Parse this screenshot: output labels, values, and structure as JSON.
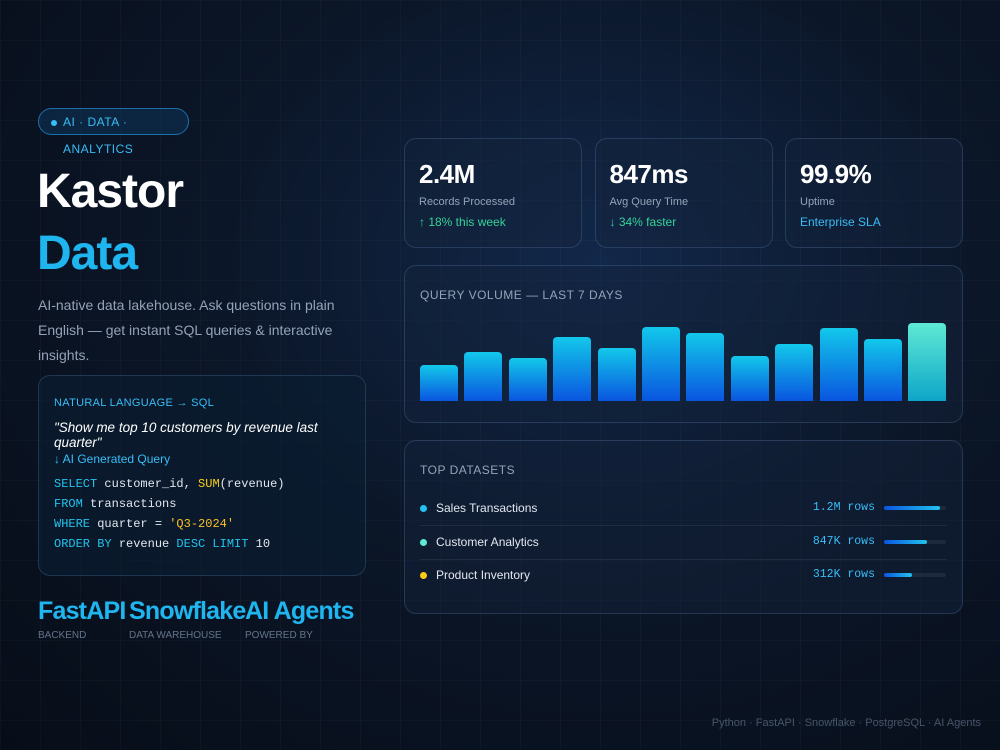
{
  "badge": "AI · DATA · ANALYTICS",
  "title": {
    "line1": "Kastor",
    "line2": "Data"
  },
  "description": "AI-native data lakehouse. Ask questions in plain English — get instant SQL queries & interactive insights.",
  "query_card": {
    "label": "NATURAL LANGUAGE → SQL",
    "question": "\"Show me top 10 customers by revenue last quarter\"",
    "generated": "↓ AI Generated Query",
    "sql": [
      [
        {
          "text": "SELECT ",
          "color": "#22c3ee"
        },
        {
          "text": "customer_id, ",
          "color": "#e2e8f0"
        },
        {
          "text": "SUM",
          "color": "#facc15"
        },
        {
          "text": "(revenue)",
          "color": "#e2e8f0"
        }
      ],
      [
        {
          "text": "FROM ",
          "color": "#22c3ee"
        },
        {
          "text": "transactions",
          "color": "#e2e8f0"
        }
      ],
      [
        {
          "text": "WHERE ",
          "color": "#22c3ee"
        },
        {
          "text": "quarter = ",
          "color": "#e2e8f0"
        },
        {
          "text": "'Q3-2024'",
          "color": "#fbbf24"
        }
      ],
      [
        {
          "text": "ORDER BY ",
          "color": "#22c3ee"
        },
        {
          "text": "revenue ",
          "color": "#e2e8f0"
        },
        {
          "text": "DESC LIMIT ",
          "color": "#22c3ee"
        },
        {
          "text": "10",
          "color": "#e2e8f0"
        }
      ]
    ]
  },
  "tech": [
    {
      "name": "FastAPI",
      "sub": "BACKEND"
    },
    {
      "name": "Snowflake",
      "sub": "DATA WAREHOUSE"
    },
    {
      "name": "AI Agents",
      "sub": "POWERED BY"
    }
  ],
  "stats": [
    {
      "value": "2.4M",
      "label": "Records Processed",
      "note": "↑ 18% this week",
      "note_color": "#34d399"
    },
    {
      "value": "847ms",
      "label": "Avg Query Time",
      "note": "↓ 34% faster",
      "note_color": "#34d399"
    },
    {
      "value": "99.9%",
      "label": "Uptime",
      "note": "Enterprise SLA",
      "note_color": "#38bdf8"
    }
  ],
  "chart_data": {
    "type": "bar",
    "title": "QUERY VOLUME — LAST 7 DAYS",
    "values": [
      36,
      49,
      43,
      64,
      53,
      74,
      68,
      45,
      57,
      73,
      62,
      78
    ]
  },
  "datasets": {
    "title": "TOP DATASETS",
    "rows": [
      {
        "name": "Sales Transactions",
        "value": "1.2M rows",
        "share": 90,
        "color": "#22c3ee"
      },
      {
        "name": "Customer Analytics",
        "value": "847K rows",
        "share": 70,
        "color": "#5eead4"
      },
      {
        "name": "Product Inventory",
        "value": "312K rows",
        "share": 45,
        "color": "#facc15"
      }
    ]
  },
  "footer": "Python · FastAPI · Snowflake · PostgreSQL · AI Agents"
}
